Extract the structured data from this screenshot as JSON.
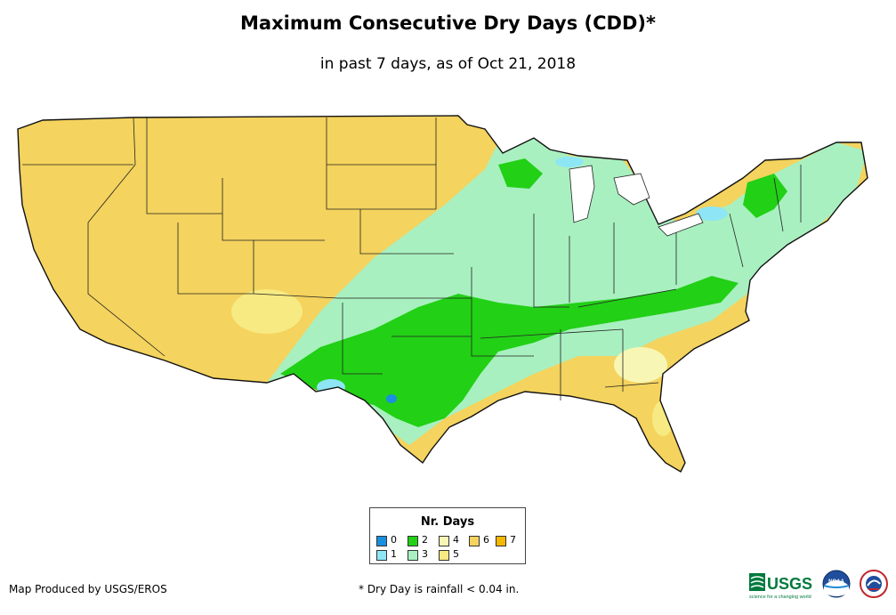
{
  "title": "Maximum Consecutive Dry Days (CDD)*",
  "subtitle": "in past 7 days, as of Oct 21, 2018",
  "legend": {
    "title": "Nr. Days",
    "items": [
      {
        "label": "0",
        "color": "#1a8fe0"
      },
      {
        "label": "1",
        "color": "#8ee6f5"
      },
      {
        "label": "2",
        "color": "#22d016"
      },
      {
        "label": "3",
        "color": "#a9f0c0"
      },
      {
        "label": "4",
        "color": "#f7f6b4"
      },
      {
        "label": "5",
        "color": "#f7ea82"
      },
      {
        "label": "6",
        "color": "#f4d35e"
      },
      {
        "label": "7",
        "color": "#f4b800"
      }
    ]
  },
  "colors": {
    "outline": "#111111",
    "dry_base": "#f4d35e",
    "wet_core": "#22d016",
    "moist": "#a9f0c0"
  },
  "credit": "Map Produced by USGS/EROS",
  "footnote": "* Dry Day is rainfall < 0.04 in.",
  "logos": {
    "usgs_text": "USGS",
    "usgs_tagline": "science for a changing world",
    "noaa_text": "NOAA"
  }
}
